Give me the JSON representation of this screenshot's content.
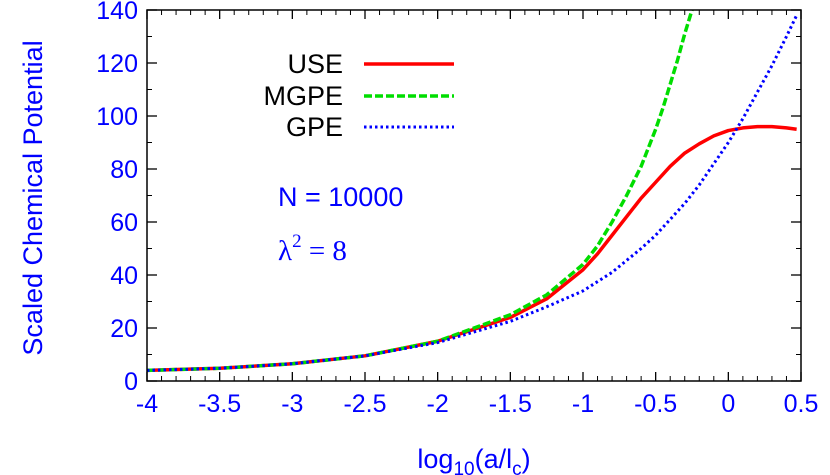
{
  "chart_data": {
    "type": "line",
    "title": "",
    "xlabel_parts": {
      "prefix": "log",
      "sub1": "10",
      "mid": "(a/l",
      "sub2": "c",
      "suffix": ")"
    },
    "ylabel": "Scaled Chemical Potential",
    "xlim": [
      -4,
      0.5
    ],
    "ylim": [
      0,
      140
    ],
    "xticks": [
      -4,
      -3.5,
      -3,
      -2.5,
      -2,
      -1.5,
      -1,
      -0.5,
      0,
      0.5
    ],
    "xtick_labels": [
      "-4",
      "-3.5",
      "-3",
      "-2.5",
      "-2",
      "-1.5",
      "-1",
      "-0.5",
      "0",
      "0.5"
    ],
    "yticks": [
      0,
      20,
      40,
      60,
      80,
      100,
      120,
      140
    ],
    "ytick_labels": [
      "0",
      "20",
      "40",
      "60",
      "80",
      "100",
      "120",
      "140"
    ],
    "grid": false,
    "legend_position": "top-left",
    "annotations": {
      "n_text": "N = 10000",
      "lambda_symbol": "λ",
      "lambda_exp": "2",
      "lambda_rest": " = 8"
    },
    "axis_color": "#0000ff",
    "series": [
      {
        "name": "USE",
        "color": "#ff0000",
        "dash": "solid",
        "x": [
          -4,
          -3.5,
          -3,
          -2.5,
          -2,
          -1.5,
          -1.25,
          -1,
          -0.9,
          -0.8,
          -0.7,
          -0.6,
          -0.5,
          -0.4,
          -0.3,
          -0.2,
          -0.1,
          0,
          0.1,
          0.2,
          0.3,
          0.4,
          0.47
        ],
        "y": [
          4,
          4.8,
          6.5,
          9.5,
          15,
          24,
          31,
          42,
          48,
          55,
          62,
          69,
          75,
          81,
          86,
          89.5,
          92.5,
          94.5,
          95.5,
          96,
          96,
          95.5,
          95
        ]
      },
      {
        "name": "MGPE",
        "color": "#00dd00",
        "dash": "dashed",
        "x": [
          -4,
          -3.5,
          -3,
          -2.5,
          -2,
          -1.5,
          -1.25,
          -1,
          -0.9,
          -0.8,
          -0.7,
          -0.6,
          -0.5,
          -0.45,
          -0.4,
          -0.35,
          -0.3,
          -0.25
        ],
        "y": [
          4,
          4.8,
          6.5,
          9.5,
          15,
          25,
          32.5,
          44,
          51,
          60,
          70,
          81,
          95,
          103,
          112,
          121,
          131,
          140
        ]
      },
      {
        "name": "GPE",
        "color": "#0000ff",
        "dash": "dotted",
        "x": [
          -4,
          -3.5,
          -3,
          -2.5,
          -2,
          -1.5,
          -1.25,
          -1,
          -0.9,
          -0.8,
          -0.7,
          -0.6,
          -0.5,
          -0.4,
          -0.3,
          -0.2,
          -0.1,
          0,
          0.1,
          0.2,
          0.3,
          0.4,
          0.47
        ],
        "y": [
          4,
          4.8,
          6.5,
          9.5,
          14.5,
          22.5,
          28,
          34,
          37.5,
          41,
          45.5,
          50,
          55,
          61,
          67,
          74,
          82,
          90,
          99,
          109,
          119,
          130,
          138
        ]
      }
    ]
  }
}
